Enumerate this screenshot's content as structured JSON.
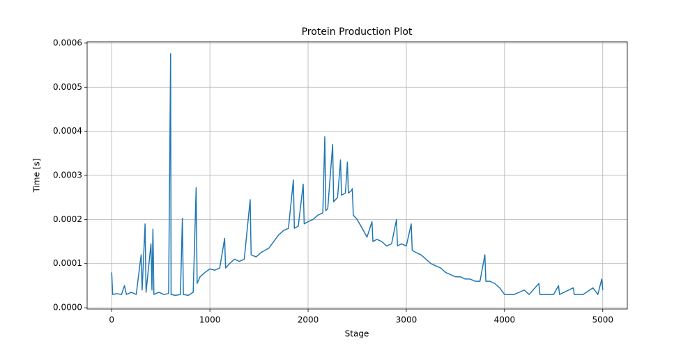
{
  "chart_data": {
    "type": "line",
    "title": "Protein Production Plot",
    "x_label": "Stage",
    "y_label": "Time [s]",
    "color": "#1f77b4",
    "grid": true,
    "xlim": [
      -250,
      5250
    ],
    "xticks": [
      0,
      1000,
      2000,
      3000,
      4000,
      5000
    ],
    "ylim": [
      -3e-06,
      0.000603
    ],
    "yticks": [
      {
        "value": 0,
        "label": "0.0000"
      },
      {
        "value": 0.0001,
        "label": "0.0001"
      },
      {
        "value": 0.0002,
        "label": "0.0002"
      },
      {
        "value": 0.0003,
        "label": "0.0003"
      },
      {
        "value": 0.0004,
        "label": "0.0004"
      },
      {
        "value": 0.0005,
        "label": "0.0005"
      },
      {
        "value": 0.0006,
        "label": "0.0006"
      }
    ],
    "x": [
      0,
      10,
      50,
      100,
      130,
      150,
      200,
      250,
      300,
      310,
      340,
      350,
      400,
      410,
      420,
      430,
      480,
      530,
      580,
      600,
      605,
      650,
      700,
      720,
      730,
      780,
      830,
      860,
      870,
      900,
      950,
      1000,
      1050,
      1100,
      1150,
      1160,
      1200,
      1250,
      1300,
      1350,
      1410,
      1420,
      1470,
      1520,
      1560,
      1600,
      1650,
      1700,
      1750,
      1800,
      1850,
      1860,
      1900,
      1950,
      1960,
      2000,
      2050,
      2100,
      2150,
      2170,
      2180,
      2200,
      2250,
      2260,
      2300,
      2330,
      2340,
      2380,
      2400,
      2410,
      2440,
      2450,
      2460,
      2500,
      2550,
      2600,
      2650,
      2660,
      2700,
      2750,
      2800,
      2850,
      2900,
      2910,
      2950,
      3000,
      3050,
      3060,
      3100,
      3150,
      3200,
      3250,
      3300,
      3350,
      3400,
      3450,
      3500,
      3550,
      3600,
      3650,
      3700,
      3750,
      3800,
      3810,
      3850,
      3900,
      3950,
      4000,
      4100,
      4200,
      4250,
      4350,
      4360,
      4500,
      4550,
      4560,
      4700,
      4710,
      4800,
      4900,
      4950,
      4990,
      5000
    ],
    "values": [
      8e-05,
      3e-05,
      3.2e-05,
      3e-05,
      5e-05,
      3e-05,
      3.5e-05,
      3e-05,
      0.00012,
      4e-05,
      0.00019,
      3.5e-05,
      0.000145,
      4e-05,
      0.000178,
      3e-05,
      3.5e-05,
      3e-05,
      3.2e-05,
      0.000576,
      3e-05,
      2.8e-05,
      3e-05,
      0.000203,
      3e-05,
      2.8e-05,
      3.5e-05,
      0.000272,
      5.5e-05,
      7e-05,
      8e-05,
      8.8e-05,
      8.5e-05,
      9e-05,
      0.000157,
      9e-05,
      0.0001,
      0.00011,
      0.000105,
      0.00011,
      0.000245,
      0.00012,
      0.000115,
      0.000125,
      0.00013,
      0.000135,
      0.00015,
      0.000165,
      0.000175,
      0.00018,
      0.00029,
      0.00018,
      0.000185,
      0.00028,
      0.00019,
      0.000195,
      0.0002,
      0.00021,
      0.000215,
      0.000388,
      0.00022,
      0.000225,
      0.00037,
      0.00024,
      0.00025,
      0.000335,
      0.000255,
      0.00026,
      0.00033,
      0.00026,
      0.000265,
      0.00027,
      0.00021,
      0.0002,
      0.00018,
      0.00016,
      0.000195,
      0.00015,
      0.000155,
      0.00015,
      0.00014,
      0.000145,
      0.0002,
      0.00014,
      0.000145,
      0.00014,
      0.00019,
      0.00013,
      0.000125,
      0.00012,
      0.00011,
      0.0001,
      9.5e-05,
      9e-05,
      8e-05,
      7.5e-05,
      7e-05,
      7e-05,
      6.5e-05,
      6.5e-05,
      6e-05,
      6e-05,
      0.00012,
      6e-05,
      6e-05,
      5.5e-05,
      4.5e-05,
      3e-05,
      3e-05,
      4e-05,
      3e-05,
      5.5e-05,
      3e-05,
      3e-05,
      5e-05,
      3e-05,
      4.5e-05,
      3e-05,
      3e-05,
      4.5e-05,
      3e-05,
      6.5e-05,
      4e-05
    ]
  }
}
